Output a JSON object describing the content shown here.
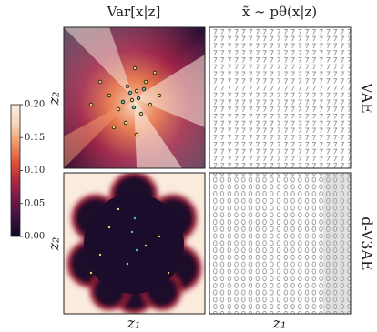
{
  "chart_data": {
    "type": "heatmap",
    "column_titles": [
      "Var[x|z]",
      "x̃ ∼ pθ(x|z)"
    ],
    "row_labels": [
      "VAE",
      "d-V3AE"
    ],
    "xlabel": "z₁",
    "ylabel": "z₂",
    "colorbar": {
      "clim": [
        0,
        0.2
      ],
      "ticks": [
        {
          "value": 0,
          "label": "0.00"
        },
        {
          "value": 0.05,
          "label": "0.05"
        },
        {
          "value": 0.1,
          "label": "0.10"
        },
        {
          "value": 0.15,
          "label": "0.15"
        },
        {
          "value": 0.2,
          "label": "0.20"
        }
      ],
      "colormap": [
        "#0c0a1e",
        "#3b1240",
        "#741a4a",
        "#b3283e",
        "#e2553a",
        "#f19a6e",
        "#f8d8bf",
        "#faebdd"
      ]
    }
  }
}
